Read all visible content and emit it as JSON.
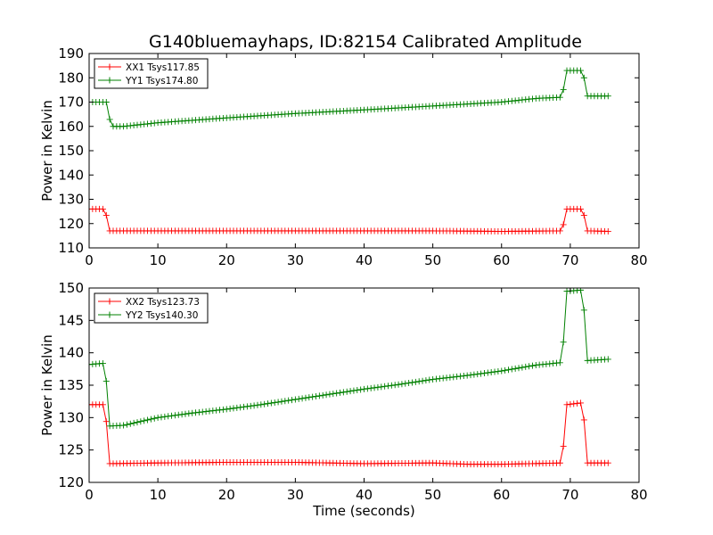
{
  "figure": {
    "title": "G140bluemayhaps, ID:82154 Calibrated Amplitude"
  },
  "chart_data": [
    {
      "type": "line",
      "title": "G140bluemayhaps, ID:82154 Calibrated Amplitude",
      "xlabel": "",
      "ylabel": "Power in Kelvin",
      "xlim": [
        0,
        80
      ],
      "ylim": [
        110,
        190
      ],
      "xticks": [
        0,
        10,
        20,
        30,
        40,
        50,
        60,
        70,
        80
      ],
      "yticks": [
        110,
        120,
        130,
        140,
        150,
        160,
        170,
        180,
        190
      ],
      "grid": false,
      "legend_position": "top-left",
      "series": [
        {
          "name": "XX1 Tsys117.85",
          "color": "#ff0000",
          "marker": "+",
          "points": [
            [
              0,
              126
            ],
            [
              2.3,
              126
            ],
            [
              3,
              117
            ],
            [
              10,
              117
            ],
            [
              20,
              117
            ],
            [
              30,
              117
            ],
            [
              40,
              117
            ],
            [
              50,
              117
            ],
            [
              60,
              116.8
            ],
            [
              68.8,
              117
            ],
            [
              69.5,
              126
            ],
            [
              71.8,
              126
            ],
            [
              72.5,
              117
            ],
            [
              75.5,
              116.8
            ]
          ]
        },
        {
          "name": "YY1 Tsys174.80",
          "color": "#008000",
          "marker": "+",
          "points": [
            [
              0,
              170
            ],
            [
              2.5,
              170
            ],
            [
              3.2,
              160
            ],
            [
              5,
              160
            ],
            [
              10,
              161.5
            ],
            [
              20,
              163.5
            ],
            [
              30,
              165.3
            ],
            [
              40,
              166.8
            ],
            [
              50,
              168.4
            ],
            [
              60,
              170
            ],
            [
              65,
              171.5
            ],
            [
              68.8,
              172
            ],
            [
              69.5,
              183
            ],
            [
              71.8,
              183
            ],
            [
              72.5,
              172.5
            ],
            [
              75.5,
              172.5
            ]
          ]
        }
      ]
    },
    {
      "type": "line",
      "title": "",
      "xlabel": "Time (seconds)",
      "ylabel": "Power in Kelvin",
      "xlim": [
        0,
        80
      ],
      "ylim": [
        120,
        150
      ],
      "xticks": [
        0,
        10,
        20,
        30,
        40,
        50,
        60,
        70,
        80
      ],
      "yticks": [
        120,
        125,
        130,
        135,
        140,
        145,
        150
      ],
      "grid": false,
      "legend_position": "top-left",
      "series": [
        {
          "name": "XX2 Tsys123.73",
          "color": "#ff0000",
          "marker": "+",
          "points": [
            [
              0,
              132
            ],
            [
              2.3,
              132
            ],
            [
              3,
              122.9
            ],
            [
              10,
              123
            ],
            [
              20,
              123.1
            ],
            [
              30,
              123.1
            ],
            [
              40,
              122.9
            ],
            [
              50,
              123
            ],
            [
              55,
              122.8
            ],
            [
              60,
              122.8
            ],
            [
              68.8,
              123
            ],
            [
              69.5,
              132
            ],
            [
              71.8,
              132.3
            ],
            [
              72.5,
              123
            ],
            [
              75.5,
              123
            ]
          ]
        },
        {
          "name": "YY2 Tsys140.30",
          "color": "#008000",
          "marker": "+",
          "points": [
            [
              0,
              138.2
            ],
            [
              2.3,
              138.4
            ],
            [
              3,
              128.7
            ],
            [
              5,
              128.8
            ],
            [
              10,
              130
            ],
            [
              15,
              130.7
            ],
            [
              20,
              131.3
            ],
            [
              25,
              132
            ],
            [
              30,
              132.8
            ],
            [
              35,
              133.6
            ],
            [
              40,
              134.4
            ],
            [
              45,
              135.1
            ],
            [
              50,
              135.9
            ],
            [
              55,
              136.5
            ],
            [
              60,
              137.2
            ],
            [
              65,
              138.1
            ],
            [
              68.8,
              138.5
            ],
            [
              69.5,
              149.5
            ],
            [
              71.8,
              149.7
            ],
            [
              72.5,
              138.8
            ],
            [
              75.5,
              139
            ]
          ]
        }
      ]
    }
  ]
}
